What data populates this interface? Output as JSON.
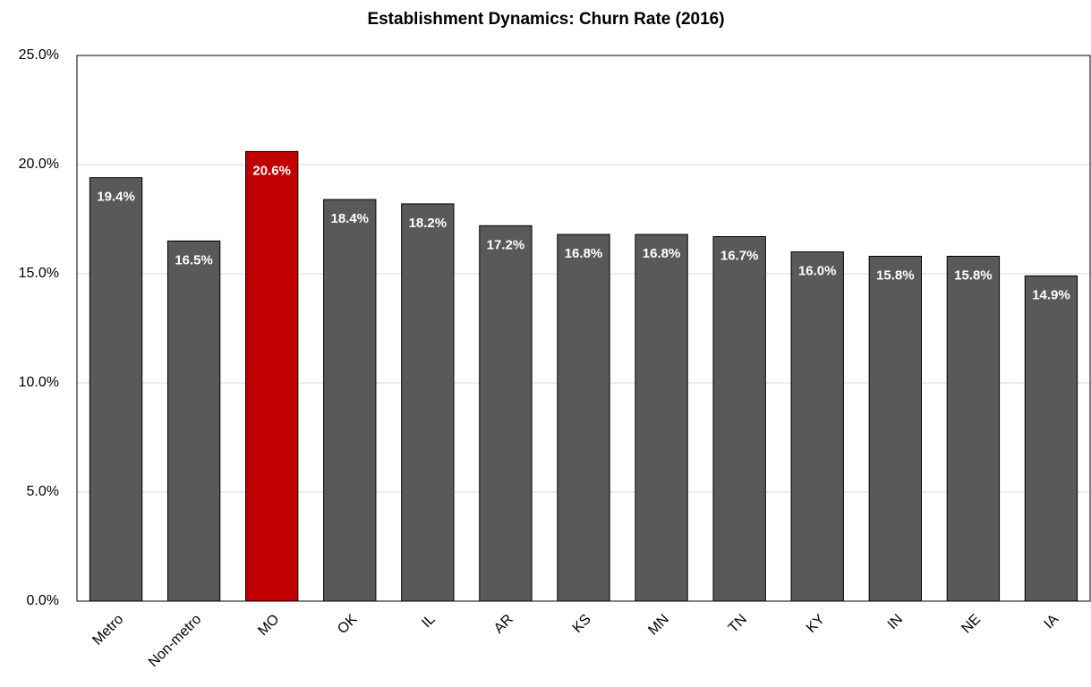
{
  "chart_data": {
    "type": "bar",
    "title": "Establishment  Dynamics: Churn Rate (2016)",
    "categories": [
      "Metro",
      "Non-metro",
      "MO",
      "OK",
      "IL",
      "AR",
      "KS",
      "MN",
      "TN",
      "KY",
      "IN",
      "NE",
      "IA"
    ],
    "values": [
      19.4,
      16.5,
      20.6,
      18.4,
      18.2,
      17.2,
      16.8,
      16.8,
      16.7,
      16.0,
      15.8,
      15.8,
      14.9
    ],
    "value_labels": [
      "19.4%",
      "16.5%",
      "20.6%",
      "18.4%",
      "18.2%",
      "17.2%",
      "16.8%",
      "16.8%",
      "16.7%",
      "16.0%",
      "15.8%",
      "15.8%",
      "14.9%"
    ],
    "colors": [
      "#595959",
      "#595959",
      "#c00000",
      "#595959",
      "#595959",
      "#595959",
      "#595959",
      "#595959",
      "#595959",
      "#595959",
      "#595959",
      "#595959",
      "#595959"
    ],
    "ylim": [
      0,
      25
    ],
    "yticks": [
      {
        "value": 0,
        "label": "0.0%"
      },
      {
        "value": 5,
        "label": "5.0%"
      },
      {
        "value": 10,
        "label": "10.0%"
      },
      {
        "value": 15,
        "label": "15.0%"
      },
      {
        "value": 20,
        "label": "20.0%"
      },
      {
        "value": 25,
        "label": "25.0%"
      }
    ],
    "grid": true
  }
}
